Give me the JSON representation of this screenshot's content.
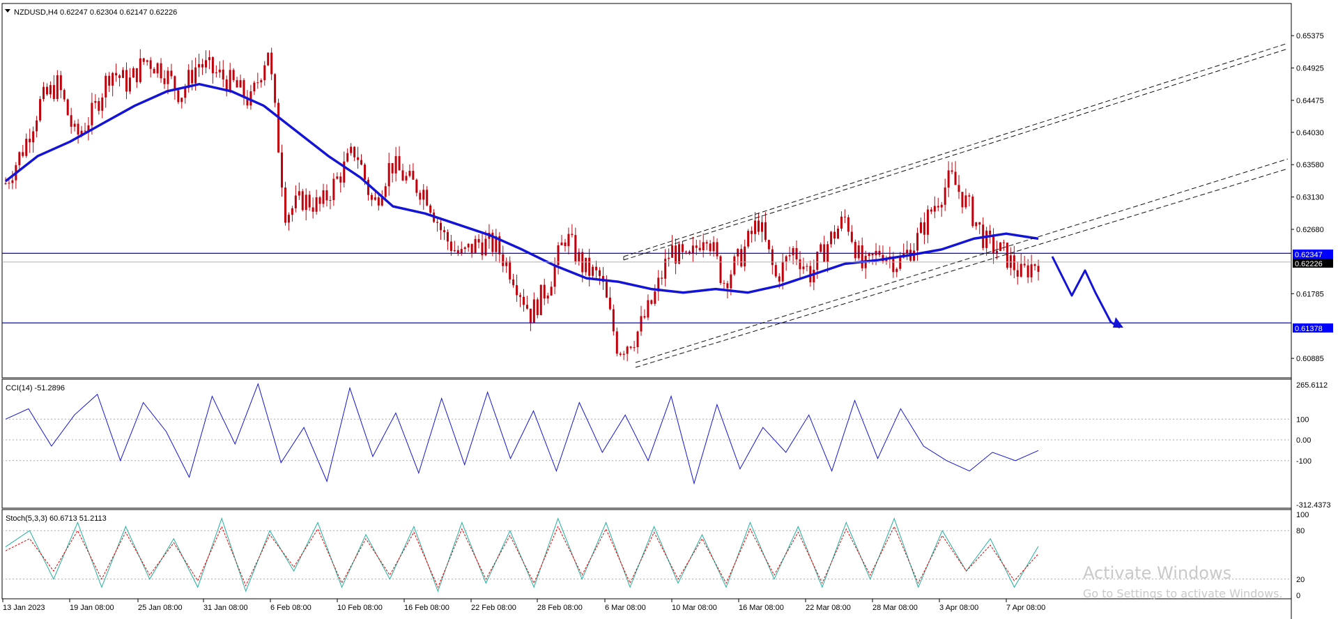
{
  "chart_header": {
    "symbol_label": "NZDUSD,H4",
    "ohlc": "0.62247 0.62304 0.62147 0.62226"
  },
  "colors": {
    "candle": "#c0000b",
    "ma": "#1414d6",
    "level_line": "#0000ff",
    "price_tag_level": "#0000ff",
    "price_tag_current": "#000000",
    "cci_line": "#1414d6",
    "stoch_main": "#20b0a0",
    "stoch_signal": "#e00000",
    "grid_dots": "#a9a9a9"
  },
  "icons": {
    "arrow": "down-arrow-icon",
    "menu": "triangle-down-icon"
  },
  "chart_data": [
    {
      "type": "candlestick",
      "title": "NZDUSD,H4",
      "ohlc_last": {
        "open": 0.62247,
        "high": 0.62304,
        "low": 0.62147,
        "close": 0.62226
      },
      "y_ticks": [
        "0.65375",
        "0.64925",
        "0.64475",
        "0.64030",
        "0.63580",
        "0.63130",
        "0.62680",
        "0.61785",
        "0.60885"
      ],
      "ylim": [
        0.6075,
        0.6558
      ],
      "x_ticks": [
        "13 Jan 2023",
        "19 Jan 08:00",
        "25 Jan 08:00",
        "31 Jan 08:00",
        "6 Feb 08:00",
        "10 Feb 08:00",
        "16 Feb 08:00",
        "22 Feb 08:00",
        "28 Feb 08:00",
        "6 Mar 08:00",
        "10 Mar 08:00",
        "16 Mar 08:00",
        "22 Mar 08:00",
        "28 Mar 08:00",
        "3 Apr 08:00",
        "7 Apr 08:00"
      ],
      "close_path": [
        0.6332,
        0.638,
        0.6445,
        0.647,
        0.6395,
        0.643,
        0.649,
        0.647,
        0.6505,
        0.649,
        0.6455,
        0.65,
        0.6485,
        0.647,
        0.6445,
        0.652,
        0.629,
        0.631,
        0.63,
        0.634,
        0.638,
        0.63,
        0.636,
        0.6335,
        0.632,
        0.626,
        0.623,
        0.625,
        0.6245,
        0.6205,
        0.615,
        0.619,
        0.626,
        0.6215,
        0.62,
        0.61,
        0.612,
        0.617,
        0.624,
        0.622,
        0.627,
        0.6195,
        0.623,
        0.628,
        0.62,
        0.624,
        0.6205,
        0.625,
        0.6285,
        0.621,
        0.624,
        0.622,
        0.625,
        0.63,
        0.634,
        0.63,
        0.625,
        0.6235,
        0.6205,
        0.6226
      ],
      "moving_average": [
        0.6335,
        0.637,
        0.639,
        0.6415,
        0.644,
        0.646,
        0.647,
        0.646,
        0.644,
        0.6405,
        0.637,
        0.634,
        0.63,
        0.629,
        0.6275,
        0.626,
        0.624,
        0.6218,
        0.62,
        0.6195,
        0.6185,
        0.618,
        0.6185,
        0.618,
        0.619,
        0.6205,
        0.622,
        0.6225,
        0.6232,
        0.624,
        0.6255,
        0.6262,
        0.6255
      ],
      "horizontal_levels": [
        "0.62347",
        "0.61378"
      ],
      "current_price": "0.62226",
      "channel": "rising parallel channel (two dashed bands)",
      "projection": "blue arrow down to 0.61378"
    },
    {
      "type": "line",
      "title": "CCI(14) -51.2896",
      "series": [
        {
          "name": "CCI(14)",
          "values": [
            100,
            150,
            -30,
            120,
            220,
            -100,
            180,
            40,
            -180,
            210,
            -20,
            270,
            -110,
            60,
            -200,
            250,
            -80,
            130,
            -160,
            200,
            -120,
            230,
            -90,
            140,
            -150,
            180,
            -60,
            120,
            -100,
            210,
            -210,
            170,
            -140,
            60,
            -60,
            120,
            -150,
            190,
            -90,
            150,
            -30,
            -100,
            -150,
            -60,
            -100,
            -51.2896
          ]
        }
      ],
      "y_ticks": [
        "265.6112",
        "100",
        "0.00",
        "-100",
        "-312.4373"
      ],
      "ylim": [
        -312.4373,
        265.6112
      ],
      "levels": [
        100,
        0,
        -100
      ]
    },
    {
      "type": "line",
      "title": "Stoch(5,3,3) 60.6713 51.2113",
      "series": [
        {
          "name": "Stoch main",
          "values": [
            60,
            80,
            20,
            90,
            10,
            85,
            20,
            70,
            10,
            95,
            5,
            80,
            30,
            90,
            10,
            75,
            20,
            85,
            5,
            90,
            15,
            80,
            10,
            95,
            20,
            90,
            10,
            85,
            15,
            75,
            10,
            90,
            20,
            85,
            10,
            90,
            20,
            95,
            10,
            80,
            30,
            70,
            10,
            60.6713
          ]
        },
        {
          "name": "Stoch signal",
          "values": [
            55,
            70,
            30,
            80,
            20,
            78,
            25,
            65,
            18,
            85,
            12,
            75,
            35,
            82,
            15,
            70,
            25,
            78,
            10,
            82,
            20,
            74,
            15,
            85,
            25,
            82,
            15,
            78,
            20,
            70,
            15,
            82,
            25,
            78,
            15,
            82,
            25,
            85,
            15,
            74,
            30,
            62,
            18,
            51.2113
          ]
        }
      ],
      "y_ticks": [
        "100",
        "80",
        "20",
        "0"
      ],
      "ylim": [
        0,
        100
      ],
      "levels": [
        80,
        20
      ]
    }
  ],
  "watermark": {
    "line1": "Activate Windows",
    "line2": "Go to Settings to activate Windows."
  }
}
